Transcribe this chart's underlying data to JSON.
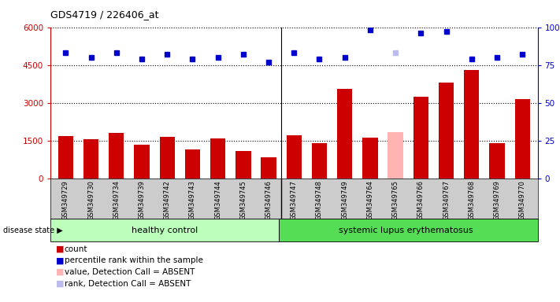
{
  "title": "GDS4719 / 226406_at",
  "samples": [
    "GSM349729",
    "GSM349730",
    "GSM349734",
    "GSM349739",
    "GSM349742",
    "GSM349743",
    "GSM349744",
    "GSM349745",
    "GSM349746",
    "GSM349747",
    "GSM349748",
    "GSM349749",
    "GSM349764",
    "GSM349765",
    "GSM349766",
    "GSM349767",
    "GSM349768",
    "GSM349769",
    "GSM349770"
  ],
  "counts": [
    1680,
    1560,
    1800,
    1340,
    1650,
    1130,
    1570,
    1070,
    820,
    1700,
    1380,
    3550,
    1620,
    1820,
    3250,
    3800,
    4300,
    1380,
    3150
  ],
  "bar_colors": [
    "#cc0000",
    "#cc0000",
    "#cc0000",
    "#cc0000",
    "#cc0000",
    "#cc0000",
    "#cc0000",
    "#cc0000",
    "#cc0000",
    "#cc0000",
    "#cc0000",
    "#cc0000",
    "#cc0000",
    "#ffb3b3",
    "#cc0000",
    "#cc0000",
    "#cc0000",
    "#cc0000",
    "#cc0000"
  ],
  "percentile_ranks": [
    83,
    80,
    83,
    79,
    82,
    79,
    80,
    82,
    77,
    83,
    79,
    80,
    98,
    83,
    96,
    97,
    79,
    80,
    82
  ],
  "rank_colors": [
    "#0000cc",
    "#0000cc",
    "#0000cc",
    "#0000cc",
    "#0000cc",
    "#0000cc",
    "#0000cc",
    "#0000cc",
    "#0000cc",
    "#0000cc",
    "#0000cc",
    "#0000cc",
    "#0000cc",
    "#bbbbee",
    "#0000cc",
    "#0000cc",
    "#0000cc",
    "#0000cc",
    "#0000cc"
  ],
  "healthy_count": 9,
  "left_ylim": [
    0,
    6000
  ],
  "right_ylim": [
    0,
    100
  ],
  "left_yticks": [
    0,
    1500,
    3000,
    4500,
    6000
  ],
  "right_yticks": [
    0,
    25,
    50,
    75,
    100
  ],
  "group1_label": "healthy control",
  "group2_label": "systemic lupus erythematosus",
  "disease_state_label": "disease state",
  "legend_items": [
    {
      "label": "count",
      "color": "#cc0000"
    },
    {
      "label": "percentile rank within the sample",
      "color": "#0000cc"
    },
    {
      "label": "value, Detection Call = ABSENT",
      "color": "#ffb3b3"
    },
    {
      "label": "rank, Detection Call = ABSENT",
      "color": "#bbbbee"
    }
  ],
  "background_color": "#ffffff",
  "xticklabel_area_color": "#cccccc",
  "group_bar_color1": "#bbffbb",
  "group_bar_color2": "#55dd55"
}
